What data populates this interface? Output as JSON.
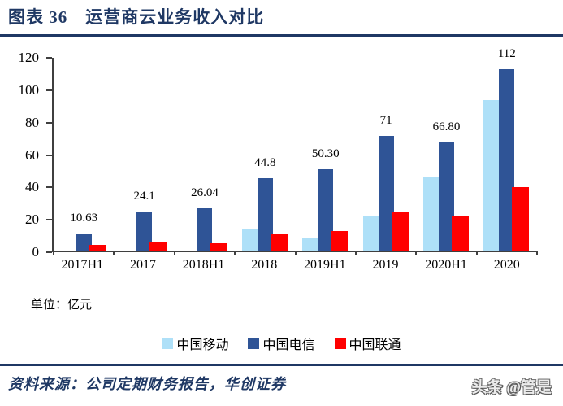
{
  "header": {
    "title": "图表 36　运营商云业务收入对比"
  },
  "chart_data": {
    "type": "bar",
    "title": "运营商云业务收入对比",
    "categories": [
      "2017H1",
      "2017",
      "2018H1",
      "2018",
      "2019H1",
      "2019",
      "2020H1",
      "2020"
    ],
    "series": [
      {
        "key": "china-mobile",
        "name": "中国移动",
        "color": "#AEE0F8",
        "values": [
          0,
          0,
          0,
          13.5,
          8,
          21,
          45,
          93
        ]
      },
      {
        "key": "china-telecom",
        "name": "中国电信",
        "color": "#2F5496",
        "values": [
          10.63,
          24.1,
          26.04,
          44.8,
          50.3,
          71,
          66.8,
          112
        ],
        "labels": [
          "10.63",
          "24.1",
          "26.04",
          "44.8",
          "50.30",
          "71",
          "66.80",
          "112"
        ]
      },
      {
        "key": "china-unicom",
        "name": "中国联通",
        "color": "#FF0000",
        "values": [
          3.5,
          5.5,
          4.5,
          10.5,
          12,
          24,
          21,
          39
        ]
      }
    ],
    "xlabel": "",
    "ylabel": "",
    "ylim": [
      0,
      120
    ],
    "yticks": [
      0,
      20,
      40,
      60,
      80,
      100,
      120
    ],
    "grid": false,
    "legend_position": "bottom",
    "unit_label": "单位：亿元"
  },
  "footer": {
    "source": "资料来源：公司定期财务报告，华创证券",
    "watermark": "头条 @管是"
  },
  "colors": {
    "accent": "#1F3864",
    "axis": "#3f3f3f",
    "bar_light_blue": "#AEE0F8",
    "bar_dark_blue": "#2F5496",
    "bar_red": "#FF0000"
  }
}
